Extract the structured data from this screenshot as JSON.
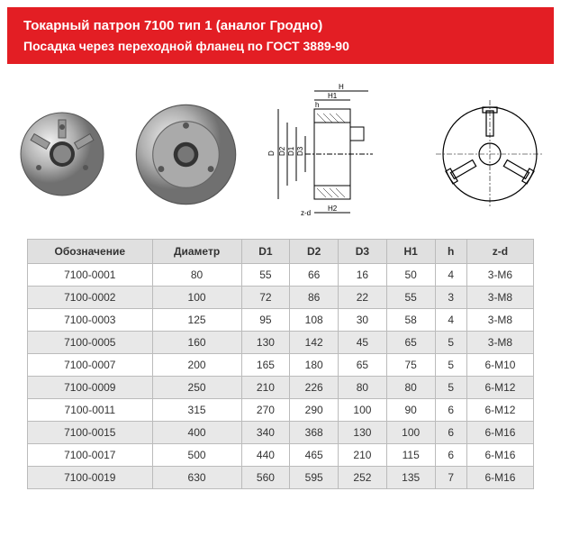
{
  "header": {
    "line1": "Токарный патрон 7100 тип 1 (аналог Гродно)",
    "line2": "Посадка через переходной фланец по ГОСТ 3889-90",
    "bg_color": "#e31e24",
    "text_color": "#ffffff",
    "font_size_line1": 15,
    "font_size_line2": 14
  },
  "images": {
    "photo1_alt": "Токарный патрон вид спереди",
    "photo2_alt": "Токарный патрон вид сбоку",
    "drawing_labels": {
      "D": "D",
      "D1": "D1",
      "D2": "D2",
      "D3": "D3",
      "H": "H",
      "H1": "H1",
      "H2": "H2",
      "h": "h",
      "zd": "z-d"
    }
  },
  "table": {
    "columns": [
      "Обозначение",
      "Диаметр",
      "D1",
      "D2",
      "D3",
      "H1",
      "h",
      "z-d"
    ],
    "rows": [
      [
        "7100-0001",
        "80",
        "55",
        "66",
        "16",
        "50",
        "4",
        "3-М6"
      ],
      [
        "7100-0002",
        "100",
        "72",
        "86",
        "22",
        "55",
        "3",
        "3-М8"
      ],
      [
        "7100-0003",
        "125",
        "95",
        "108",
        "30",
        "58",
        "4",
        "3-М8"
      ],
      [
        "7100-0005",
        "160",
        "130",
        "142",
        "45",
        "65",
        "5",
        "3-М8"
      ],
      [
        "7100-0007",
        "200",
        "165",
        "180",
        "65",
        "75",
        "5",
        "6-М10"
      ],
      [
        "7100-0009",
        "250",
        "210",
        "226",
        "80",
        "80",
        "5",
        "6-М12"
      ],
      [
        "7100-0011",
        "315",
        "270",
        "290",
        "100",
        "90",
        "6",
        "6-М12"
      ],
      [
        "7100-0015",
        "400",
        "340",
        "368",
        "130",
        "100",
        "6",
        "6-М16"
      ],
      [
        "7100-0017",
        "500",
        "440",
        "465",
        "210",
        "115",
        "6",
        "6-М16"
      ],
      [
        "7100-0019",
        "630",
        "560",
        "595",
        "252",
        "135",
        "7",
        "6-М16"
      ]
    ],
    "header_bg": "#e0e0e0",
    "row_even_bg": "#e8e8e8",
    "row_odd_bg": "#ffffff",
    "border_color": "#bbbbbb",
    "font_size": 12
  }
}
